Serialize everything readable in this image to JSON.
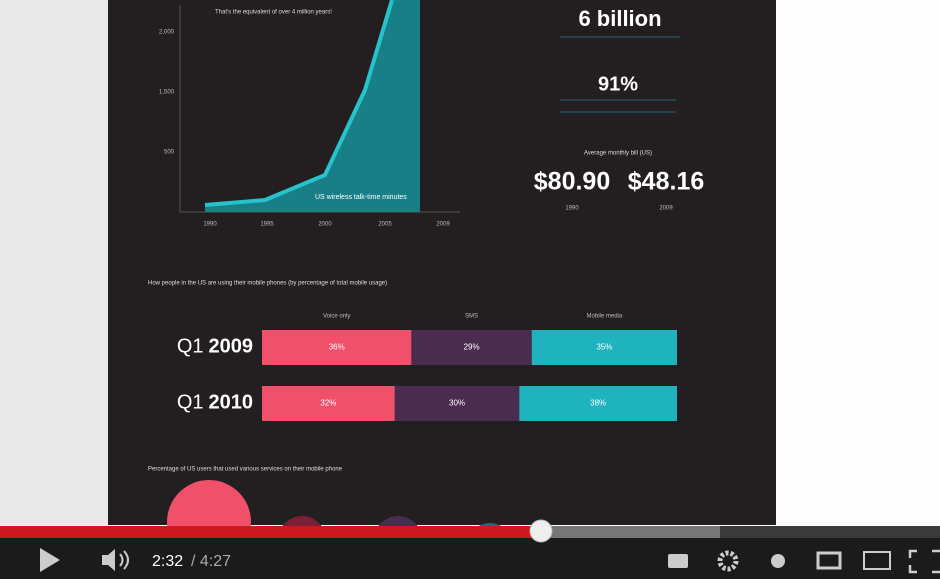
{
  "infographic": {
    "talk_chart": {
      "yticks": [
        "2,000",
        "1,500",
        "500"
      ],
      "xticks": [
        "1990",
        "1995",
        "2000",
        "2005",
        "2009"
      ],
      "note": "That's the equivalent of over 4 million years!",
      "series_label": "US wireless talk-time minutes"
    },
    "stats": {
      "subscribers": "6 billion",
      "share": "91%",
      "bill_title": "Average monthly bill (US)",
      "bills": [
        {
          "amount": "$80.90",
          "year": "1990"
        },
        {
          "amount": "$48.16",
          "year": "2009"
        }
      ]
    },
    "usage": {
      "title": "How people in the US are using their mobile phones (by percentage of total mobile usage)",
      "segments": [
        {
          "name": "Voice only",
          "color": "#f0506a"
        },
        {
          "name": "SMS",
          "color": "#4a2d4e"
        },
        {
          "name": "Mobile media",
          "color": "#1fb3be"
        }
      ],
      "rows": [
        {
          "quarter": "Q1",
          "year": "2009",
          "values": [
            36,
            29,
            35
          ],
          "value_labels": [
            "36%",
            "29%",
            "35%"
          ]
        },
        {
          "quarter": "Q1",
          "year": "2010",
          "values": [
            32,
            30,
            38
          ],
          "value_labels": [
            "32%",
            "30%",
            "38%"
          ]
        }
      ]
    },
    "services_title": "Percentage of US users that used various services on their mobile phone"
  },
  "player": {
    "time_current": "2:32",
    "time_total": "/ 4:27"
  }
}
